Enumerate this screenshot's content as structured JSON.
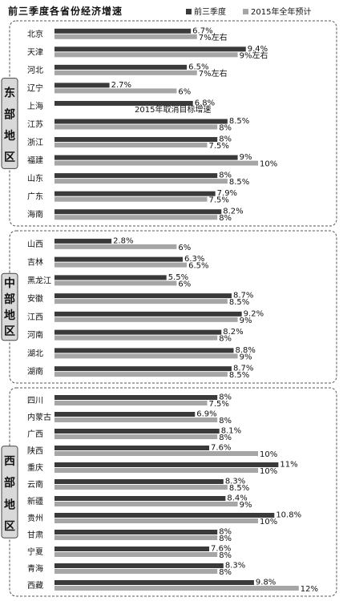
{
  "colors": {
    "series1": "#3a3a3a",
    "series2": "#a6a6a6",
    "panel_border": "#555555",
    "label_bg": "#d9d9d9"
  },
  "chart_data": {
    "type": "bar",
    "orientation": "horizontal",
    "title": "前三季度各省份经济增速",
    "legend": [
      "前三季度",
      "2015年全年预计"
    ],
    "legend_position": "top-right",
    "xlim": [
      0,
      12.5
    ],
    "series": [
      {
        "name": "前三季度"
      },
      {
        "name": "2015年全年预计"
      }
    ],
    "groups": [
      {
        "name": "东部地区",
        "rows": [
          {
            "province": "北京",
            "q3": 6.7,
            "q3_label": "6.7%",
            "year": 7,
            "year_label": "7%左右"
          },
          {
            "province": "天津",
            "q3": 9.4,
            "q3_label": "9.4%",
            "year": 9,
            "year_label": "9%左右"
          },
          {
            "province": "河北",
            "q3": 6.5,
            "q3_label": "6.5%",
            "year": 7,
            "year_label": "7%左右"
          },
          {
            "province": "辽宁",
            "q3": 2.7,
            "q3_label": "2.7%",
            "year": 6,
            "year_label": "6%"
          },
          {
            "province": "上海",
            "q3": 6.8,
            "q3_label": "6.8%",
            "year": null,
            "year_label": "2015年取消目标增速"
          },
          {
            "province": "江苏",
            "q3": 8.5,
            "q3_label": "8.5%",
            "year": 8,
            "year_label": "8%"
          },
          {
            "province": "浙江",
            "q3": 8,
            "q3_label": "8%",
            "year": 7.5,
            "year_label": "7.5%"
          },
          {
            "province": "福建",
            "q3": 9,
            "q3_label": "9%",
            "year": 10,
            "year_label": "10%"
          },
          {
            "province": "山东",
            "q3": 8,
            "q3_label": "8%",
            "year": 8.5,
            "year_label": "8.5%"
          },
          {
            "province": "广东",
            "q3": 7.9,
            "q3_label": "7.9%",
            "year": 7.5,
            "year_label": "7.5%"
          },
          {
            "province": "海南",
            "q3": 8.2,
            "q3_label": "8.2%",
            "year": 8,
            "year_label": "8%"
          }
        ]
      },
      {
        "name": "中部地区",
        "rows": [
          {
            "province": "山西",
            "q3": 2.8,
            "q3_label": "2.8%",
            "year": 6,
            "year_label": "6%"
          },
          {
            "province": "吉林",
            "q3": 6.3,
            "q3_label": "6.3%",
            "year": 6.5,
            "year_label": "6.5%"
          },
          {
            "province": "黑龙江",
            "q3": 5.5,
            "q3_label": "5.5%",
            "year": 6,
            "year_label": "6%"
          },
          {
            "province": "安徽",
            "q3": 8.7,
            "q3_label": "8.7%",
            "year": 8.5,
            "year_label": "8.5%"
          },
          {
            "province": "江西",
            "q3": 9.2,
            "q3_label": "9.2%",
            "year": 9,
            "year_label": "9%"
          },
          {
            "province": "河南",
            "q3": 8.2,
            "q3_label": "8.2%",
            "year": 8,
            "year_label": "8%"
          },
          {
            "province": "湖北",
            "q3": 8.8,
            "q3_label": "8.8%",
            "year": 9,
            "year_label": "9%"
          },
          {
            "province": "湖南",
            "q3": 8.7,
            "q3_label": "8.7%",
            "year": 8.5,
            "year_label": "8.5%"
          }
        ]
      },
      {
        "name": "西部地区",
        "rows": [
          {
            "province": "四川",
            "q3": 8,
            "q3_label": "8%",
            "year": 7.5,
            "year_label": "7.5%"
          },
          {
            "province": "内蒙古",
            "q3": 6.9,
            "q3_label": "6.9%",
            "year": 8,
            "year_label": "8%"
          },
          {
            "province": "广西",
            "q3": 8.1,
            "q3_label": "8.1%",
            "year": 8,
            "year_label": "8%"
          },
          {
            "province": "陕西",
            "q3": 7.6,
            "q3_label": "7.6%",
            "year": 10,
            "year_label": "10%"
          },
          {
            "province": "重庆",
            "q3": 11,
            "q3_label": "11%",
            "year": 10,
            "year_label": "10%"
          },
          {
            "province": "云南",
            "q3": 8.3,
            "q3_label": "8.3%",
            "year": 8.5,
            "year_label": "8.5%"
          },
          {
            "province": "新疆",
            "q3": 8.4,
            "q3_label": "8.4%",
            "year": 9,
            "year_label": "9%"
          },
          {
            "province": "贵州",
            "q3": 10.8,
            "q3_label": "10.8%",
            "year": 10,
            "year_label": "10%"
          },
          {
            "province": "甘肃",
            "q3": 8,
            "q3_label": "8%",
            "year": 8,
            "year_label": "8%"
          },
          {
            "province": "宁夏",
            "q3": 7.6,
            "q3_label": "7.6%",
            "year": 8,
            "year_label": "8%"
          },
          {
            "province": "青海",
            "q3": 8.3,
            "q3_label": "8.3%",
            "year": 8,
            "year_label": "8%"
          },
          {
            "province": "西藏",
            "q3": 9.8,
            "q3_label": "9.8%",
            "year": 12,
            "year_label": "12%"
          }
        ]
      }
    ]
  }
}
